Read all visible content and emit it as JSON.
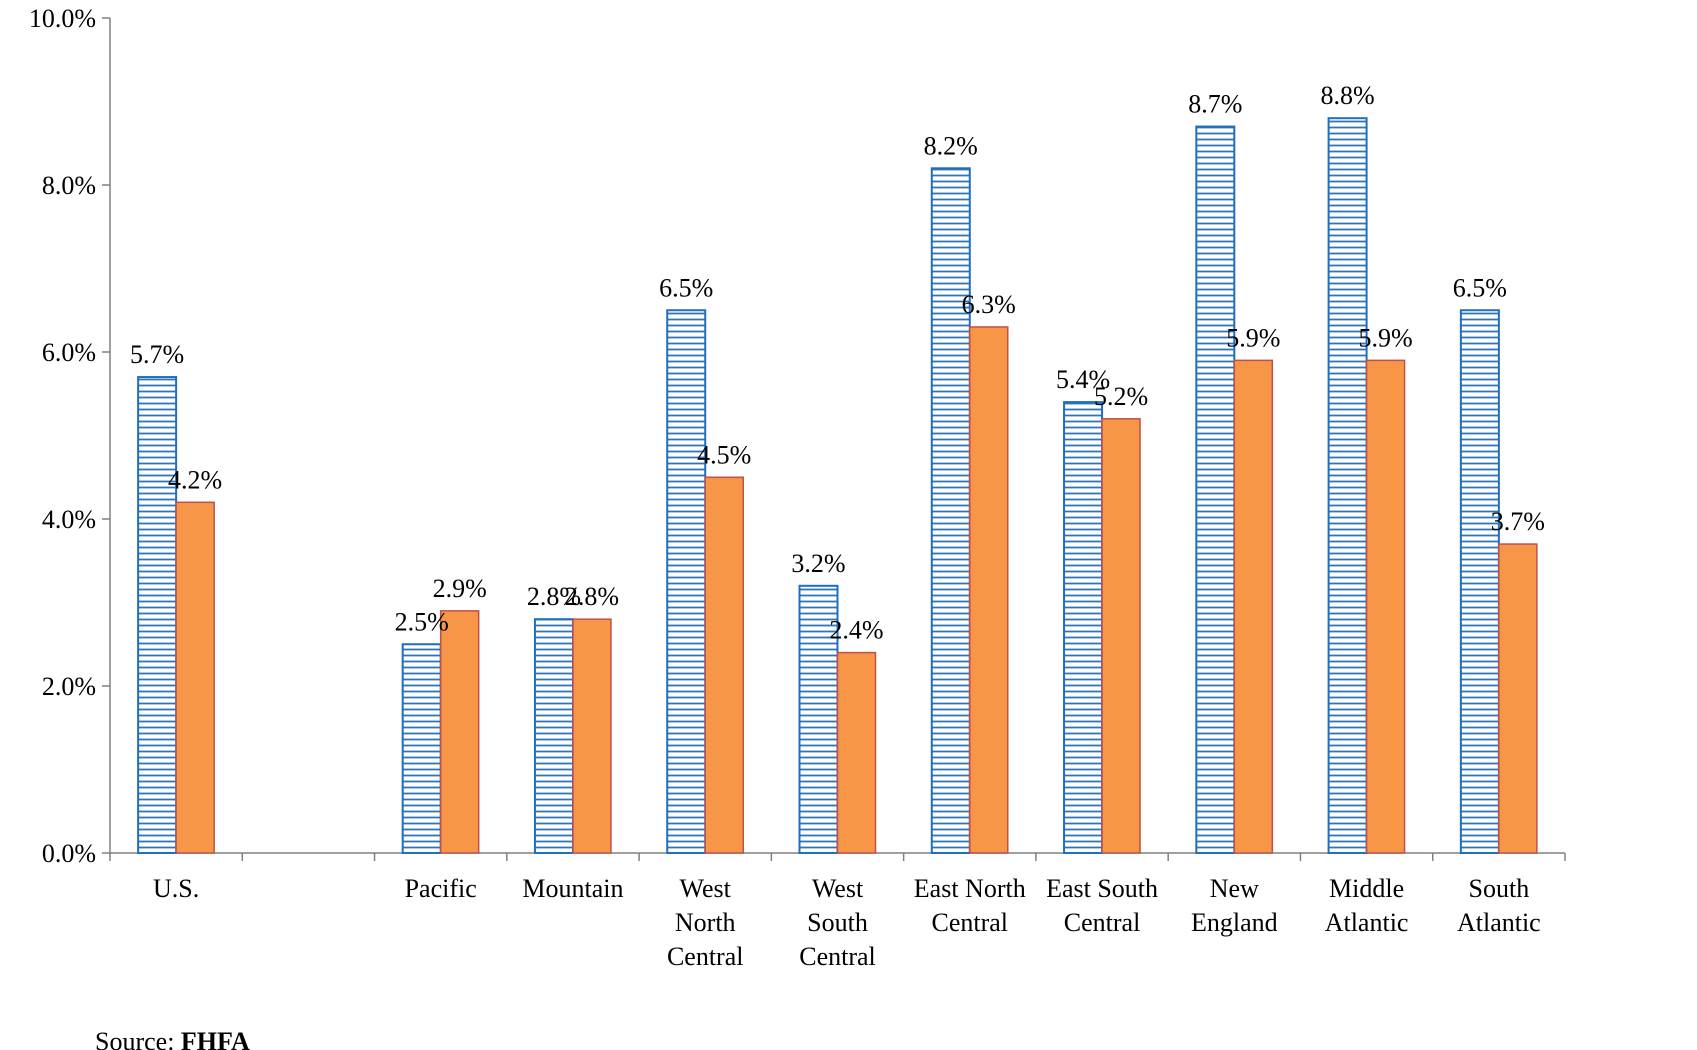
{
  "chart_data": {
    "type": "bar",
    "categories": [
      [
        "U.S."
      ],
      [
        ""
      ],
      [
        "Pacific"
      ],
      [
        "Mountain"
      ],
      [
        "West",
        "North",
        "Central"
      ],
      [
        "West",
        "South",
        "Central"
      ],
      [
        "East North",
        "Central"
      ],
      [
        "East South",
        "Central"
      ],
      [
        "New",
        "England"
      ],
      [
        "Middle",
        "Atlantic"
      ],
      [
        "South",
        "Atlantic"
      ]
    ],
    "series": [
      {
        "values": [
          5.7,
          null,
          2.5,
          2.8,
          6.5,
          3.2,
          8.2,
          5.4,
          8.7,
          8.8,
          6.5
        ],
        "labels": [
          "5.7%",
          null,
          "2.5%",
          "2.8%",
          "6.5%",
          "3.2%",
          "8.2%",
          "5.4%",
          "8.7%",
          "8.8%",
          "6.5%"
        ],
        "color": "#1f6fbf",
        "pattern": "horizontal-stripes"
      },
      {
        "values": [
          4.2,
          null,
          2.9,
          2.8,
          4.5,
          2.4,
          6.3,
          5.2,
          5.9,
          5.9,
          3.7
        ],
        "labels": [
          "4.2%",
          null,
          "2.9%",
          "2.8%",
          "4.5%",
          "2.4%",
          "6.3%",
          "5.2%",
          "5.9%",
          "5.9%",
          "3.7%"
        ],
        "color": "#f79646",
        "pattern": "solid"
      }
    ],
    "ylim": [
      0,
      10
    ],
    "yticks": [
      "0.0%",
      "2.0%",
      "4.0%",
      "6.0%",
      "8.0%",
      "10.0%"
    ],
    "title": "",
    "xlabel": "",
    "ylabel": "",
    "grid": false
  },
  "source": {
    "prefix": "Source:",
    "name": "FHFA"
  }
}
